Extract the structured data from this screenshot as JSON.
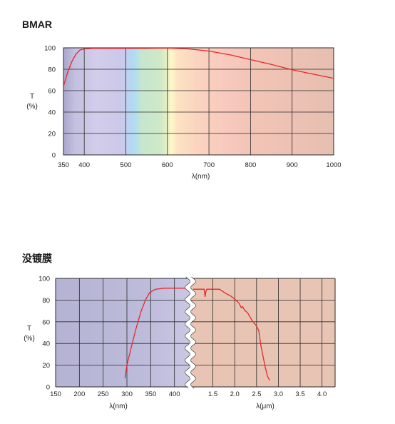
{
  "chart_data": [
    {
      "type": "line",
      "title": "BMAR",
      "xlabel": "λ(nm)",
      "ylabel": "T",
      "yunit": "(%)",
      "xlim": [
        350,
        1000
      ],
      "ylim": [
        0,
        100
      ],
      "xticks": [
        350,
        400,
        500,
        600,
        700,
        800,
        900,
        1000
      ],
      "yticks": [
        0,
        20,
        40,
        60,
        80,
        100
      ],
      "grid": true,
      "background": "visible spectrum gradient (violet-blue-green-yellow-orange-red)",
      "line_color": "#e8262a",
      "series": [
        {
          "x": [
            350,
            360,
            370,
            380,
            390,
            400,
            420,
            450,
            500,
            550,
            600,
            650,
            700,
            750,
            800,
            850,
            900,
            950,
            1000
          ],
          "y": [
            64,
            77,
            87,
            94,
            98,
            99,
            99.5,
            99.5,
            99.5,
            99.5,
            99.8,
            99,
            97,
            93.5,
            89,
            84.5,
            79.5,
            75.5,
            71.5
          ]
        }
      ]
    },
    {
      "type": "line",
      "title": "没镀膜",
      "ylabel": "T",
      "yunit": "(%)",
      "ylim": [
        0,
        100
      ],
      "yticks": [
        0,
        20,
        40,
        60,
        80,
        100
      ],
      "grid": true,
      "line_color": "#e8262a",
      "panels": [
        {
          "xlabel": "λ(nm)",
          "xlim": [
            150,
            432
          ],
          "xticks": [
            150,
            200,
            250,
            300,
            350,
            400
          ],
          "background": "#bcbbd8",
          "series": [
            {
              "x": [
                296,
                300,
                310,
                320,
                330,
                340,
                348,
                360,
                380,
                400,
                432
              ],
              "y": [
                8,
                20,
                38,
                55,
                70,
                81,
                87,
                90,
                91,
                91,
                91
              ]
            }
          ]
        },
        {
          "xlabel": "λ(μm)",
          "xlim": [
            1.0,
            4.3
          ],
          "xticks": [
            1.5,
            2.0,
            2.5,
            3.0,
            3.5,
            4.0
          ],
          "background": "#e8c4b4",
          "series": [
            {
              "x": [
                1.05,
                1.2,
                1.3,
                1.32,
                1.34,
                1.36,
                1.5,
                1.65,
                1.8,
                1.9,
                2.0,
                2.1,
                2.15,
                2.18,
                2.22,
                2.3,
                2.4,
                2.5,
                2.55,
                2.6,
                2.65,
                2.7,
                2.75,
                2.8
              ],
              "y": [
                90,
                90,
                90,
                83,
                88,
                90,
                90,
                90,
                86,
                84,
                81,
                77,
                73,
                74,
                71,
                68,
                61,
                56,
                52,
                38,
                28,
                18,
                10,
                6
              ]
            }
          ]
        }
      ]
    }
  ]
}
